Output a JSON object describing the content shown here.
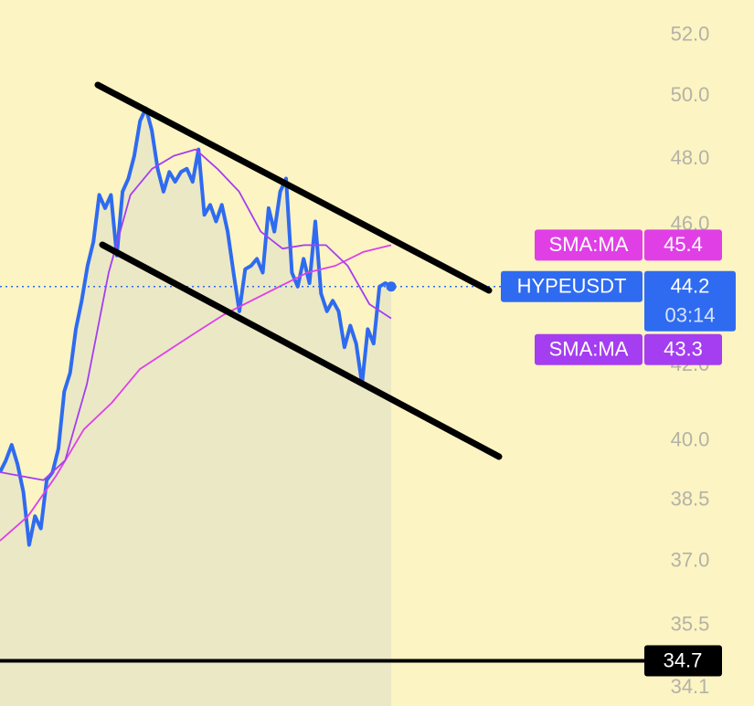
{
  "chart_data": {
    "type": "line",
    "log_scale": true,
    "ylim": [
      33.7,
      53.2
    ],
    "yticks": [
      {
        "value": 52,
        "label": "52.0"
      },
      {
        "value": 50,
        "label": "50.0"
      },
      {
        "value": 48,
        "label": "48.0"
      },
      {
        "value": 46,
        "label": "46.0"
      },
      {
        "value": 42,
        "label": "42.0"
      },
      {
        "value": 40,
        "label": "40.0"
      },
      38.5,
      {
        "value": 37,
        "label": "37.0"
      },
      35.5,
      34.1
    ],
    "series": [
      {
        "name": "HYPEUSDT",
        "color": "#2f6bf0",
        "values": [
          39.2,
          39.5,
          39.9,
          39.4,
          38.7,
          37.4,
          38.1,
          37.8,
          39.0,
          39.2,
          39.8,
          41.3,
          41.8,
          43.0,
          43.8,
          44.8,
          45.5,
          46.9,
          46.5,
          46.9,
          45.1,
          47.0,
          47.4,
          48.1,
          49.2,
          49.6,
          48.9,
          47.7,
          47.0,
          47.6,
          47.3,
          47.6,
          47.7,
          47.3,
          48.3,
          46.3,
          46.6,
          46.1,
          46.6,
          45.8,
          44.6,
          43.5,
          44.7,
          44.8,
          45.0,
          44.6,
          46.5,
          45.8,
          47.0,
          47.4,
          44.6,
          44.2,
          45.0,
          44.3,
          46.1,
          44.0,
          43.5,
          43.8,
          43.5,
          42.5,
          43.1,
          42.6,
          41.5,
          43.0,
          42.6,
          44.2,
          44.3,
          44.2
        ]
      },
      {
        "name": "SMA:MA",
        "color": "#e03fe6",
        "values": [
          37.5,
          38.1,
          39.1,
          40.3,
          41.0,
          41.9,
          42.4,
          42.9,
          43.4,
          43.8,
          44.2,
          44.6,
          44.8,
          45.2,
          45.4
        ]
      },
      {
        "name": "SMA:MA",
        "color": "#a43ef0",
        "values": [
          39.2,
          39.1,
          39.0,
          39.5,
          41.5,
          44.6,
          46.9,
          47.7,
          48.1,
          48.3,
          47.7,
          47.0,
          45.8,
          45.3,
          45.4,
          45.4,
          44.8,
          43.7,
          43.3
        ]
      }
    ],
    "countdown": "03:14",
    "price_line": 34.7
  }
}
